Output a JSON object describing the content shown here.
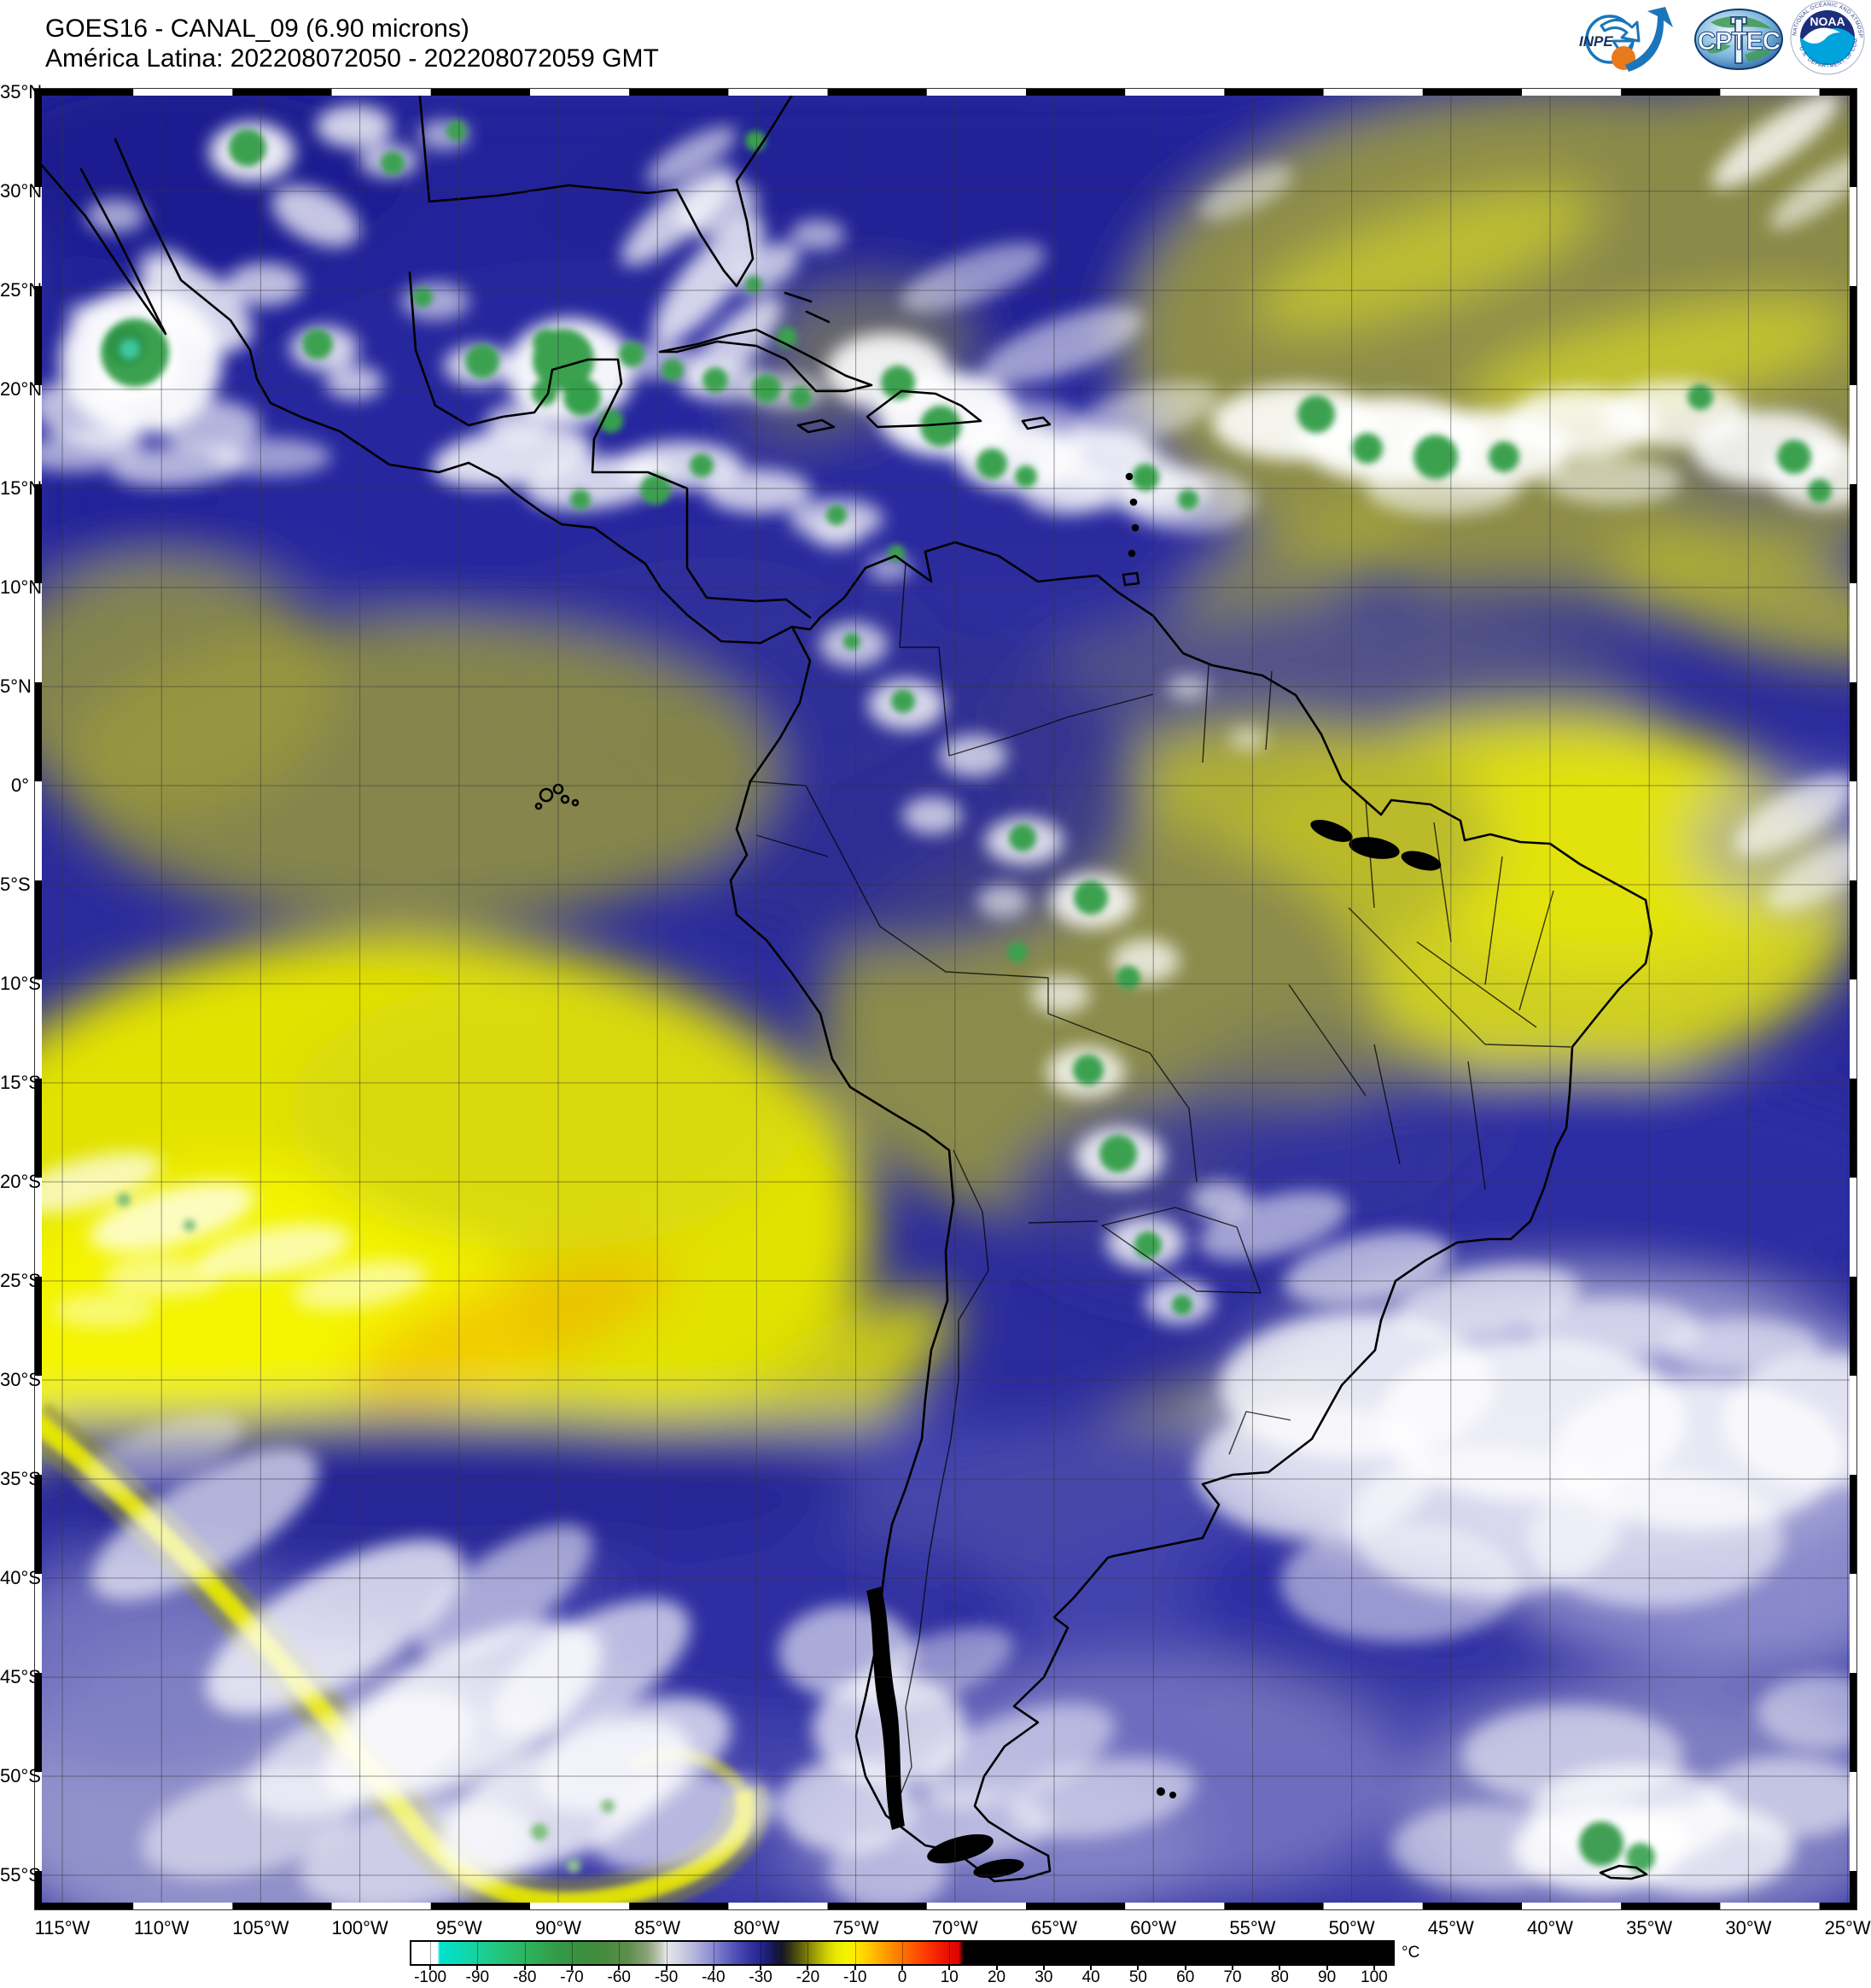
{
  "header": {
    "title_line1": "GOES16 - CANAL_09 (6.90 microns)",
    "title_line2": "América Latina: 202208072050 - 202208072059 GMT",
    "logos": {
      "inpe": "INPE",
      "cptec": "CPTEC",
      "noaa": "NOAA",
      "noaa_ring_top": "NATIONAL OCEANIC AND ATMOSPHERIC ADMINISTRATION",
      "noaa_ring_bottom": "U.S. DEPARTMENT OF COMMERCE"
    }
  },
  "map": {
    "lat_labels": [
      "35°N",
      "30°N",
      "25°N",
      "20°N",
      "15°N",
      "10°N",
      "5°N",
      "0°",
      "5°S",
      "10°S",
      "15°S",
      "20°S",
      "25°S",
      "30°S",
      "35°S",
      "40°S",
      "45°S",
      "50°S",
      "55°S"
    ],
    "lon_labels": [
      "115°W",
      "110°W",
      "105°W",
      "100°W",
      "95°W",
      "90°W",
      "85°W",
      "80°W",
      "75°W",
      "70°W",
      "65°W",
      "60°W",
      "55°W",
      "50°W",
      "45°W",
      "40°W",
      "35°W",
      "30°W",
      "25°W"
    ]
  },
  "colorbar": {
    "unit": "°C",
    "range": [
      -104,
      104
    ],
    "ticks": [
      -100,
      -90,
      -80,
      -70,
      -60,
      -50,
      -40,
      -30,
      -20,
      -10,
      0,
      10,
      20,
      30,
      40,
      50,
      60,
      70,
      80,
      90,
      100
    ],
    "stops": [
      {
        "v": -104,
        "c": "#ffffff"
      },
      {
        "v": -98.5,
        "c": "#ffffff"
      },
      {
        "v": -98,
        "c": "#00e2d2"
      },
      {
        "v": -93,
        "c": "#0fd8b0"
      },
      {
        "v": -88,
        "c": "#1fcd8e"
      },
      {
        "v": -83,
        "c": "#28bd71"
      },
      {
        "v": -78,
        "c": "#2fae58"
      },
      {
        "v": -73,
        "c": "#339a46"
      },
      {
        "v": -68,
        "c": "#3a8f3e"
      },
      {
        "v": -63,
        "c": "#468a3d"
      },
      {
        "v": -58,
        "c": "#5e8f4d"
      },
      {
        "v": -54,
        "c": "#8ba277"
      },
      {
        "v": -51,
        "c": "#c9cfc2"
      },
      {
        "v": -50,
        "c": "#e8e8ea"
      },
      {
        "v": -47,
        "c": "#d0d0e4"
      },
      {
        "v": -44,
        "c": "#b4b4dc"
      },
      {
        "v": -41,
        "c": "#9494d4"
      },
      {
        "v": -38,
        "c": "#6f6fc6"
      },
      {
        "v": -35,
        "c": "#4c4cb4"
      },
      {
        "v": -32,
        "c": "#31319f"
      },
      {
        "v": -29,
        "c": "#20207c"
      },
      {
        "v": -27,
        "c": "#16164e"
      },
      {
        "v": -25.5,
        "c": "#151527"
      },
      {
        "v": -24,
        "c": "#2e2e17"
      },
      {
        "v": -22,
        "c": "#55550f"
      },
      {
        "v": -20,
        "c": "#7f7f0a"
      },
      {
        "v": -18,
        "c": "#a8a806"
      },
      {
        "v": -16,
        "c": "#cfcf03"
      },
      {
        "v": -14,
        "c": "#e8e800"
      },
      {
        "v": -12,
        "c": "#f4f400"
      },
      {
        "v": -10,
        "c": "#fdea00"
      },
      {
        "v": -8,
        "c": "#ffd400"
      },
      {
        "v": -6,
        "c": "#ffbb00"
      },
      {
        "v": -4,
        "c": "#ffa200"
      },
      {
        "v": -2,
        "c": "#ff8a00"
      },
      {
        "v": 0,
        "c": "#ff7300"
      },
      {
        "v": 2,
        "c": "#ff5c00"
      },
      {
        "v": 4,
        "c": "#ff4600"
      },
      {
        "v": 6,
        "c": "#fb3000"
      },
      {
        "v": 8,
        "c": "#f21d00"
      },
      {
        "v": 10,
        "c": "#e80d00"
      },
      {
        "v": 12,
        "c": "#df0300"
      },
      {
        "v": 13,
        "c": "#000000"
      },
      {
        "v": 104,
        "c": "#000000"
      }
    ]
  }
}
